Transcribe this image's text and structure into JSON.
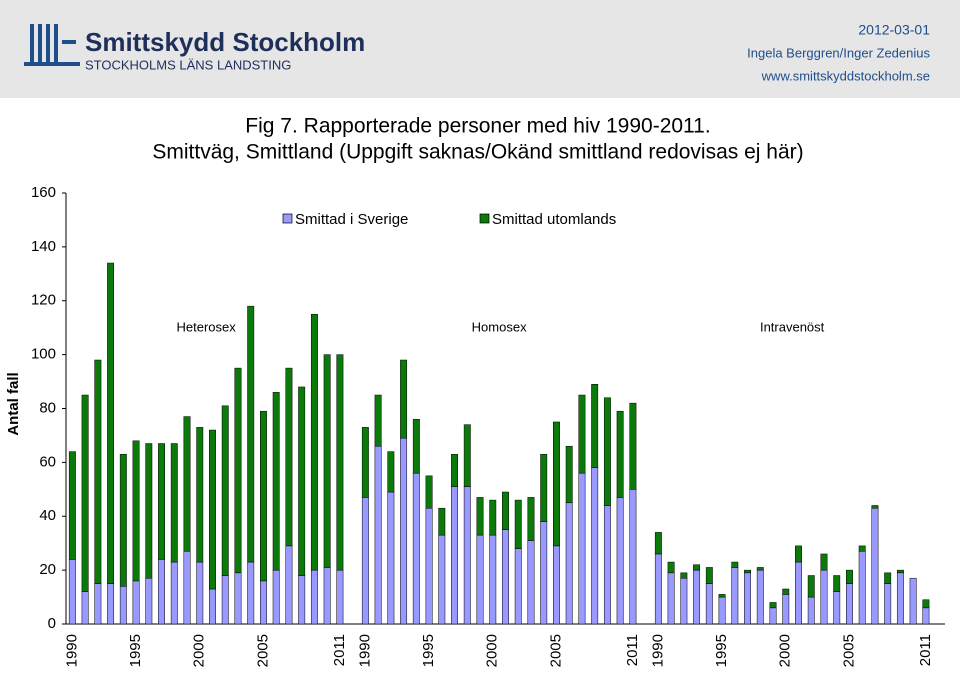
{
  "header": {
    "logo_title": "Smittskydd Stockholm",
    "logo_subtitle": "STOCKHOLMS LÄNS LANDSTING",
    "date": "2012-03-01",
    "authors": "Ingela Berggren/Inger Zedenius",
    "website": "www.smittskyddstockholm.se"
  },
  "chart_data": {
    "type": "stacked_bar",
    "title": "Fig 7. Rapporterade personer med hiv 1990-2011.",
    "subtitle": "Smittväg, Smittland (Uppgift saknas/Okänd smittland redovisas ej här)",
    "y_label": "Antal fall",
    "groups": [
      "Heterosex",
      "Homosex",
      "Intravenöst"
    ],
    "categories": [
      "1990",
      null,
      null,
      null,
      null,
      "1995",
      null,
      null,
      null,
      null,
      "2000",
      null,
      null,
      null,
      null,
      "2005",
      null,
      null,
      null,
      null,
      null,
      "2011",
      "1990",
      null,
      null,
      null,
      null,
      "1995",
      null,
      null,
      null,
      null,
      "2000",
      null,
      null,
      null,
      null,
      "2005",
      null,
      null,
      null,
      null,
      null,
      "2011",
      "1990",
      null,
      null,
      null,
      null,
      "1995",
      null,
      null,
      null,
      null,
      "2000",
      null,
      null,
      null,
      null,
      "2005",
      null,
      null,
      null,
      null,
      null,
      "2011"
    ],
    "series": [
      {
        "name": "Smittad i Sverige",
        "color": "#9999ff",
        "values": [
          24,
          12,
          15,
          15,
          14,
          16,
          17,
          24,
          23,
          27,
          23,
          13,
          18,
          19,
          23,
          16,
          20,
          29,
          18,
          20,
          21,
          20,
          47,
          66,
          49,
          69,
          56,
          43,
          33,
          51,
          51,
          33,
          33,
          35,
          28,
          31,
          38,
          29,
          45,
          56,
          58,
          44,
          47,
          50,
          26,
          19,
          17,
          20,
          15,
          10,
          21,
          19,
          20,
          6,
          11,
          23,
          10,
          20,
          12,
          15,
          27,
          43,
          15,
          19,
          17,
          6
        ]
      },
      {
        "name": "Smittad utomlands",
        "color": "#0b7a0b",
        "values": [
          40,
          73,
          83,
          119,
          49,
          52,
          50,
          43,
          44,
          50,
          50,
          59,
          63,
          76,
          95,
          63,
          66,
          66,
          70,
          95,
          79,
          80,
          26,
          19,
          15,
          29,
          20,
          12,
          10,
          12,
          23,
          14,
          13,
          14,
          18,
          16,
          25,
          46,
          21,
          29,
          31,
          40,
          32,
          32,
          8,
          4,
          2,
          2,
          6,
          1,
          2,
          1,
          1,
          2,
          2,
          6,
          8,
          6,
          6,
          5,
          2,
          1,
          4,
          1,
          0,
          3
        ]
      }
    ],
    "ylim": [
      0,
      160
    ],
    "yticks": [
      0,
      20,
      40,
      60,
      80,
      100,
      120,
      140,
      160
    ],
    "grid": false
  }
}
